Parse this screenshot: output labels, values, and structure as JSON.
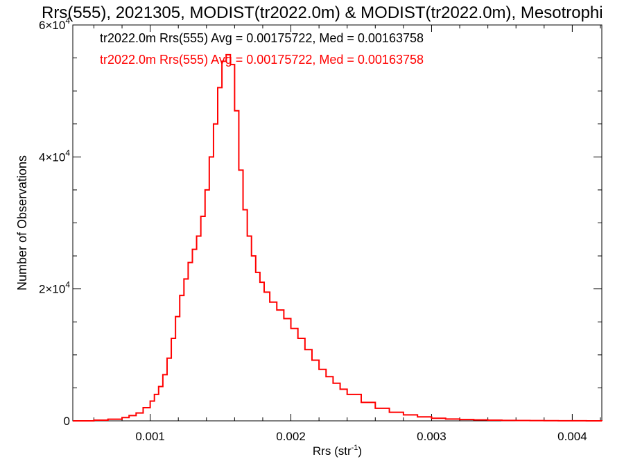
{
  "chart_data": {
    "type": "line",
    "title": "Rrs(555), 2021305, MODIST(tr2022.0m) & MODIST(tr2022.0m), Mesotrophi",
    "xlabel": "Rrs (str",
    "xlabel_sup": "-1",
    "xlabel_suffix": ")",
    "ylabel": "Number of Observations",
    "xlim": [
      0.00045,
      0.00421
    ],
    "ylim": [
      0,
      60000
    ],
    "x_ticks": [
      {
        "value": 0.001,
        "label": "0.001"
      },
      {
        "value": 0.002,
        "label": "0.002"
      },
      {
        "value": 0.003,
        "label": "0.003"
      },
      {
        "value": 0.004,
        "label": "0.004"
      }
    ],
    "y_ticks": [
      {
        "value": 0,
        "label": "0",
        "sup": ""
      },
      {
        "value": 20000,
        "label": "2×10",
        "sup": "4"
      },
      {
        "value": 40000,
        "label": "4×10",
        "sup": "4"
      },
      {
        "value": 60000,
        "label": "6×10",
        "sup": "4"
      }
    ],
    "grid": false,
    "legend_position": "top-left",
    "annotations": [
      {
        "text": "tr2022.0m Rrs(555) Avg = 0.00175722, Med = 0.00163758",
        "color": "#000000"
      },
      {
        "text": "tr2022.0m Rrs(555) Avg = 0.00175722, Med = 0.00163758",
        "color": "#ff0000"
      }
    ],
    "series": [
      {
        "color": "#ff0000",
        "x": [
          0.00045,
          0.0006,
          0.0007,
          0.0008,
          0.00085,
          0.0009,
          0.00095,
          0.001,
          0.00103,
          0.00106,
          0.00109,
          0.00112,
          0.00115,
          0.00118,
          0.00121,
          0.00124,
          0.00127,
          0.0013,
          0.00133,
          0.00136,
          0.00139,
          0.00142,
          0.00145,
          0.00148,
          0.00151,
          0.00154,
          0.00157,
          0.0016,
          0.00163,
          0.00166,
          0.00169,
          0.00172,
          0.00175,
          0.00178,
          0.00181,
          0.00185,
          0.0019,
          0.00195,
          0.002,
          0.00205,
          0.0021,
          0.00215,
          0.0022,
          0.00225,
          0.0023,
          0.00235,
          0.0024,
          0.0025,
          0.0026,
          0.0027,
          0.0028,
          0.0029,
          0.003,
          0.0031,
          0.0032,
          0.0033,
          0.0034,
          0.0035,
          0.0036,
          0.0037,
          0.0038,
          0.0039,
          0.004,
          0.0041,
          0.00421
        ],
        "values": [
          0,
          100,
          250,
          500,
          800,
          1200,
          2000,
          3000,
          4000,
          5200,
          7000,
          9500,
          12500,
          15800,
          19000,
          21500,
          24000,
          26000,
          28000,
          31000,
          35000,
          40000,
          45000,
          50500,
          54500,
          55500,
          54000,
          47000,
          38000,
          32000,
          28000,
          25000,
          22500,
          21000,
          19500,
          18000,
          16800,
          15500,
          14000,
          12500,
          10800,
          9200,
          7800,
          6700,
          5700,
          4800,
          4000,
          2800,
          1900,
          1300,
          900,
          600,
          400,
          280,
          200,
          140,
          100,
          70,
          50,
          35,
          25,
          15,
          10,
          5,
          0
        ]
      }
    ]
  }
}
